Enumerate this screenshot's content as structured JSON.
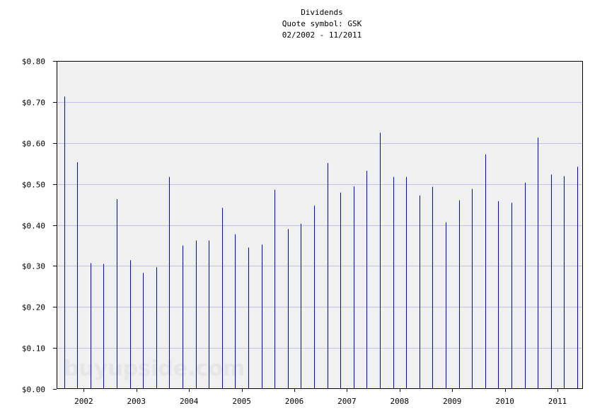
{
  "chart_data": {
    "type": "bar",
    "title": "Dividends",
    "subtitle_symbol": "Quote symbol: GSK",
    "subtitle_range": "02/2002 - 11/2011",
    "xlabel": "",
    "ylabel": "",
    "ylim": [
      0,
      0.8
    ],
    "y_ticks": [
      "$0.00",
      "$0.10",
      "$0.20",
      "$0.30",
      "$0.40",
      "$0.50",
      "$0.60",
      "$0.70",
      "$0.80"
    ],
    "x_tick_labels": [
      "2002",
      "2003",
      "2004",
      "2005",
      "2006",
      "2007",
      "2008",
      "2009",
      "2010",
      "2011"
    ],
    "grid": true,
    "bar_color": "#0000ff",
    "grid_color": "#c0c0e8",
    "plot_bg": "#f0f0f0",
    "watermark": "buyupside.com",
    "dates": [
      "2002-02",
      "2002-05",
      "2002-08",
      "2002-11",
      "2003-02",
      "2003-05",
      "2003-08",
      "2003-11",
      "2004-02",
      "2004-05",
      "2004-08",
      "2004-11",
      "2005-02",
      "2005-05",
      "2005-08",
      "2005-11",
      "2006-02",
      "2006-05",
      "2006-08",
      "2006-11",
      "2007-02",
      "2007-05",
      "2007-08",
      "2007-11",
      "2008-02",
      "2008-05",
      "2008-08",
      "2008-11",
      "2009-02",
      "2009-05",
      "2009-08",
      "2009-11",
      "2010-02",
      "2010-05",
      "2010-08",
      "2010-11",
      "2011-02",
      "2011-05",
      "2011-08",
      "2011-11"
    ],
    "values": [
      0.713,
      0.553,
      0.307,
      0.305,
      0.463,
      0.314,
      0.283,
      0.297,
      0.517,
      0.35,
      0.362,
      0.362,
      0.442,
      0.377,
      0.345,
      0.352,
      0.486,
      0.39,
      0.403,
      0.447,
      0.551,
      0.479,
      0.494,
      0.532,
      0.625,
      0.517,
      0.517,
      0.472,
      0.493,
      0.406,
      0.46,
      0.488,
      0.572,
      0.458,
      0.454,
      0.503,
      0.613,
      0.523,
      0.519,
      0.542
    ]
  }
}
